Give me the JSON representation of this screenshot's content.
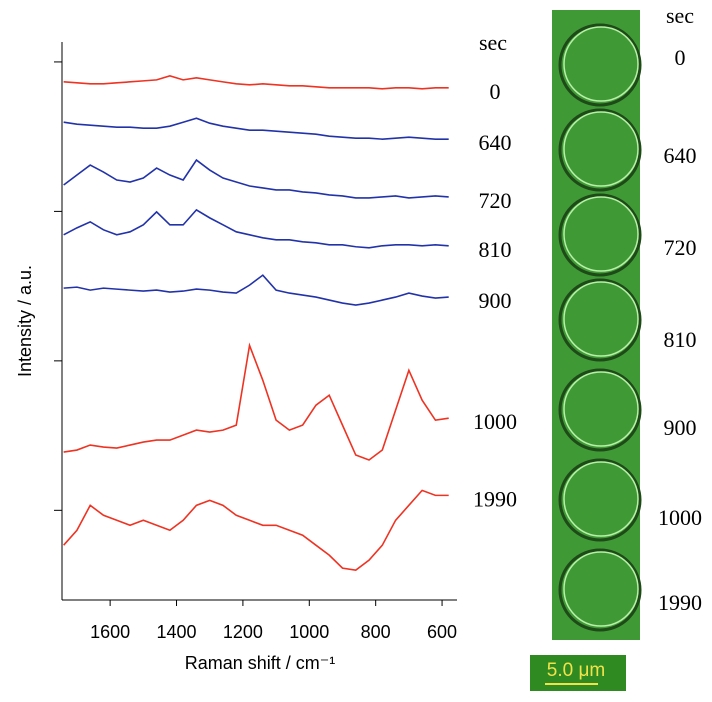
{
  "chart_data": {
    "type": "line",
    "x_label": "Raman shift / cm⁻¹",
    "y_label": "Intensity / a.u.",
    "label_header": "sec",
    "xlim": [
      1745,
      555
    ],
    "xticks": [
      1600,
      1400,
      1200,
      1000,
      800,
      600
    ],
    "ylim": [
      0,
      112
    ],
    "ytick_marks": [
      108,
      78,
      48,
      18
    ],
    "x": [
      1740,
      1700,
      1660,
      1620,
      1580,
      1540,
      1500,
      1460,
      1420,
      1380,
      1340,
      1300,
      1260,
      1220,
      1180,
      1140,
      1100,
      1060,
      1020,
      980,
      940,
      900,
      860,
      820,
      780,
      740,
      700,
      660,
      620,
      580
    ],
    "series": [
      {
        "name": "0",
        "color": "#ee3322",
        "values": [
          104.0,
          103.8,
          103.6,
          103.6,
          103.8,
          104.0,
          104.2,
          104.4,
          105.2,
          104.4,
          104.8,
          104.4,
          104.0,
          103.6,
          103.4,
          103.6,
          103.4,
          103.2,
          103.2,
          103.0,
          102.8,
          102.8,
          102.8,
          102.8,
          102.6,
          102.8,
          102.8,
          102.6,
          102.8,
          102.8
        ]
      },
      {
        "name": "640",
        "color": "#2233aa",
        "values": [
          95.9,
          95.5,
          95.3,
          95.1,
          94.9,
          94.9,
          94.7,
          94.7,
          95.1,
          95.9,
          96.7,
          95.7,
          95.1,
          94.7,
          94.3,
          94.3,
          94.1,
          93.9,
          93.7,
          93.5,
          93.1,
          92.9,
          92.7,
          92.7,
          92.5,
          92.7,
          92.9,
          92.7,
          92.5,
          92.5
        ]
      },
      {
        "name": "720",
        "color": "#2233aa",
        "values": [
          83.3,
          85.3,
          87.3,
          85.9,
          84.3,
          83.9,
          84.7,
          86.7,
          85.3,
          84.3,
          88.3,
          86.3,
          84.7,
          83.9,
          83.1,
          82.7,
          82.3,
          82.3,
          81.9,
          81.7,
          81.3,
          81.1,
          80.7,
          80.7,
          80.9,
          81.1,
          80.7,
          80.9,
          81.1,
          80.9
        ]
      },
      {
        "name": "810",
        "color": "#2233aa",
        "values": [
          73.3,
          74.7,
          75.9,
          74.3,
          73.3,
          73.9,
          75.3,
          77.9,
          75.3,
          75.3,
          78.3,
          76.7,
          75.3,
          73.9,
          73.3,
          72.7,
          72.3,
          72.3,
          71.9,
          71.7,
          71.3,
          71.3,
          70.9,
          70.7,
          71.1,
          71.3,
          71.3,
          71.1,
          71.3,
          71.1
        ]
      },
      {
        "name": "900",
        "color": "#2233aa",
        "values": [
          62.6,
          62.8,
          62.2,
          62.6,
          62.4,
          62.2,
          62.0,
          62.2,
          61.8,
          62.0,
          62.4,
          62.2,
          61.8,
          61.6,
          63.2,
          65.2,
          62.2,
          61.6,
          61.2,
          60.8,
          60.2,
          59.6,
          59.2,
          59.6,
          60.2,
          60.8,
          61.6,
          61.0,
          60.6,
          60.8
        ]
      },
      {
        "name": "1000",
        "color": "#ee3322",
        "values": [
          29.7,
          30.1,
          31.1,
          30.7,
          30.5,
          31.1,
          31.7,
          32.1,
          32.1,
          33.1,
          34.1,
          33.7,
          34.1,
          35.1,
          51.1,
          44.1,
          36.1,
          34.1,
          35.1,
          39.1,
          41.1,
          35.1,
          29.1,
          28.1,
          30.1,
          38.1,
          46.1,
          40.1,
          36.1,
          36.5
        ]
      },
      {
        "name": "1990",
        "color": "#ee3322",
        "values": [
          11.0,
          14.0,
          19.0,
          17.0,
          16.0,
          15.0,
          16.0,
          15.0,
          14.0,
          16.0,
          19.0,
          20.0,
          19.0,
          17.0,
          16.0,
          15.0,
          15.0,
          14.0,
          13.0,
          11.0,
          9.0,
          6.4,
          6.0,
          8.0,
          11.0,
          16.0,
          19.0,
          22.0,
          21.0,
          21.0
        ]
      }
    ]
  },
  "image_panel": {
    "header": "sec",
    "labels": [
      "0",
      "640",
      "720",
      "810",
      "900",
      "1000",
      "1990"
    ],
    "scale_bar": "5.0 μm"
  }
}
